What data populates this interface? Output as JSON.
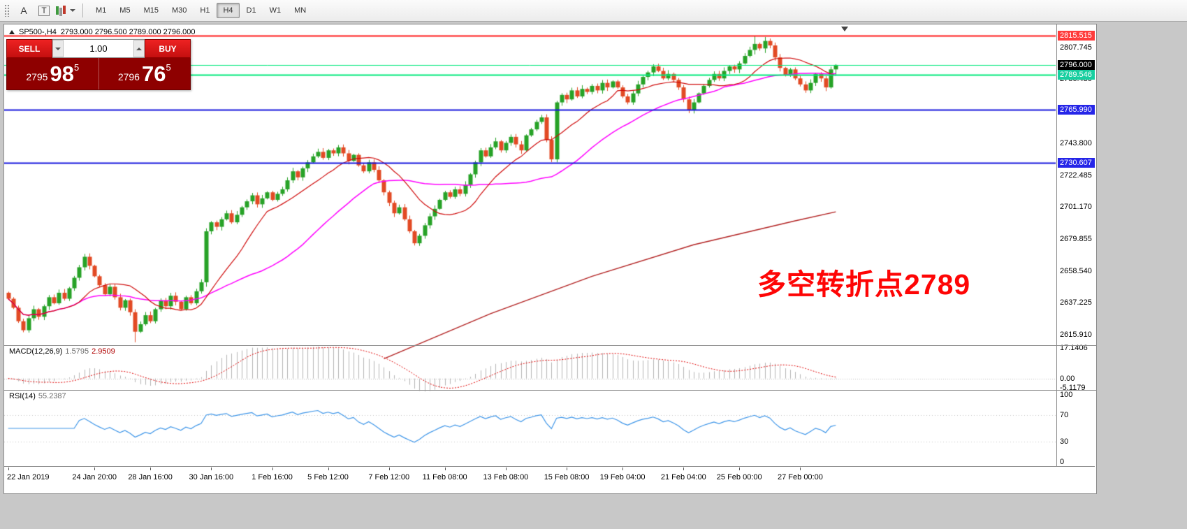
{
  "toolbar": {
    "cursor_tool_label": "A",
    "text_tool_label": "T",
    "timeframes": [
      "M1",
      "M5",
      "M15",
      "M30",
      "H1",
      "H4",
      "D1",
      "W1",
      "MN"
    ],
    "active_timeframe": "H4"
  },
  "chart": {
    "symbol": "SP500-,H4",
    "ohlc": "2793.000 2796.500 2789.000 2796.000",
    "annotation": "多空转折点2789",
    "annotation_color": "#fe0505",
    "levels": [
      {
        "text": "2815.515",
        "price": 2815.515,
        "badge_bg": "#ff3b3b",
        "badge_fg": "#ffffff",
        "line_color": "#ff1a1a",
        "line_width": 2
      },
      {
        "text": "2796.000",
        "price": 2796.0,
        "badge_bg": "#000000",
        "badge_fg": "#ffffff",
        "line_color": "#00e87c",
        "line_width": 1
      },
      {
        "text": "2789.546",
        "price": 2789.546,
        "badge_bg": "#17cfa0",
        "badge_fg": "#ffffff",
        "line_color": "#00e87c",
        "line_width": 2
      },
      {
        "text": "2765.990",
        "price": 2765.99,
        "badge_bg": "#2525e8",
        "badge_fg": "#ffffff",
        "line_color": "#1717dd",
        "line_width": 2
      },
      {
        "text": "2730.607",
        "price": 2730.607,
        "badge_bg": "#2525e8",
        "badge_fg": "#ffffff",
        "line_color": "#1717dd",
        "line_width": 2
      }
    ],
    "price_ticks": [
      "2807.745",
      "2786.430",
      "2743.800",
      "2722.485",
      "2701.170",
      "2679.855",
      "2658.540",
      "2637.225",
      "2615.910"
    ]
  },
  "trade_panel": {
    "sell_label": "SELL",
    "buy_label": "BUY",
    "lot_value": "1.00",
    "sell_price": {
      "prefix": "2795",
      "big": "98",
      "sup": "5"
    },
    "buy_price": {
      "prefix": "2796",
      "big": "76",
      "sup": "5"
    },
    "button_color": "#d81414",
    "panel_color": "#8e0000"
  },
  "macd": {
    "name": "MACD(12,26,9)",
    "main_value": "1.5795",
    "signal_value": "2.9509",
    "ticks": [
      "17.1406",
      "0.00",
      "-5.1179"
    ]
  },
  "rsi": {
    "name": "RSI(14)",
    "value": "55.2387",
    "ticks": [
      "100",
      "70",
      "30",
      "0"
    ]
  },
  "chart_data": {
    "type": "candlestick",
    "symbol": "SP500-",
    "timeframe": "H4",
    "first_open": 2644,
    "closes": [
      2640,
      2634,
      2625,
      2619,
      2627,
      2633,
      2628,
      2635,
      2641,
      2637,
      2644,
      2640,
      2647,
      2654,
      2661,
      2668,
      2662,
      2655,
      2649,
      2643,
      2648,
      2641,
      2634,
      2639,
      2631,
      2618,
      2623,
      2629,
      2625,
      2633,
      2639,
      2635,
      2642,
      2638,
      2633,
      2641,
      2637,
      2645,
      2651,
      2685,
      2691,
      2688,
      2693,
      2697,
      2691,
      2696,
      2701,
      2705,
      2709,
      2703,
      2707,
      2711,
      2706,
      2710,
      2713,
      2719,
      2725,
      2721,
      2727,
      2731,
      2735,
      2738,
      2734,
      2739,
      2737,
      2741,
      2737,
      2732,
      2736,
      2729,
      2725,
      2731,
      2726,
      2719,
      2711,
      2704,
      2697,
      2701,
      2693,
      2685,
      2677,
      2682,
      2689,
      2695,
      2700,
      2706,
      2711,
      2708,
      2713,
      2710,
      2716,
      2723,
      2731,
      2739,
      2735,
      2741,
      2745,
      2739,
      2744,
      2748,
      2743,
      2739,
      2749,
      2753,
      2758,
      2761,
      2746,
      2733,
      2771,
      2776,
      2773,
      2779,
      2775,
      2780,
      2778,
      2782,
      2779,
      2784,
      2781,
      2785,
      2781,
      2775,
      2771,
      2777,
      2783,
      2788,
      2791,
      2795,
      2792,
      2787,
      2790,
      2786,
      2781,
      2773,
      2766,
      2771,
      2777,
      2782,
      2786,
      2790,
      2787,
      2792,
      2795,
      2793,
      2797,
      2802,
      2806,
      2810,
      2807,
      2812,
      2809,
      2801,
      2794,
      2789,
      2793,
      2787,
      2783,
      2779,
      2784,
      2790,
      2787,
      2781,
      2793,
      2796
    ],
    "wick_overrides": {
      "25": [
        2633,
        2611
      ],
      "39": [
        2687,
        2648
      ],
      "108": [
        2772,
        2731
      ],
      "147": [
        2815.2,
        2803
      ],
      "149": [
        2814.6,
        2804
      ],
      "163": [
        2796.5,
        2789
      ]
    },
    "up_color": "#27a227",
    "down_color": "#e24a24",
    "ma_fast": {
      "window": 13,
      "color": "#cf0a0a"
    },
    "ma_slow": {
      "window": 34,
      "color": "#ff00ff"
    },
    "trend_line": {
      "color": "#b22222",
      "points": [
        [
          74,
          2600
        ],
        [
          95,
          2630
        ],
        [
          115,
          2655
        ],
        [
          135,
          2676
        ],
        [
          155,
          2692
        ],
        [
          163,
          2698
        ]
      ]
    },
    "price_axis": {
      "min": 2609,
      "max": 2823
    },
    "macd_axis": {
      "min": -6.5,
      "max": 18.5
    },
    "macd_params": [
      12,
      26,
      9
    ],
    "rsi_period": 14,
    "rsi_levels": [
      70,
      30
    ],
    "x_labels": [
      {
        "text": "22 Jan 2019",
        "bar": 0
      },
      {
        "text": "24 Jan 20:00",
        "bar": 17
      },
      {
        "text": "28 Jan 16:00",
        "bar": 28
      },
      {
        "text": "30 Jan 16:00",
        "bar": 40
      },
      {
        "text": "1 Feb 16:00",
        "bar": 52
      },
      {
        "text": "5 Feb 12:00",
        "bar": 63
      },
      {
        "text": "7 Feb 12:00",
        "bar": 75
      },
      {
        "text": "11 Feb 08:00",
        "bar": 86
      },
      {
        "text": "13 Feb 08:00",
        "bar": 98
      },
      {
        "text": "15 Feb 08:00",
        "bar": 110
      },
      {
        "text": "19 Feb 04:00",
        "bar": 121
      },
      {
        "text": "21 Feb 04:00",
        "bar": 133
      },
      {
        "text": "25 Feb 00:00",
        "bar": 144
      },
      {
        "text": "27 Feb 00:00",
        "bar": 156
      }
    ]
  }
}
